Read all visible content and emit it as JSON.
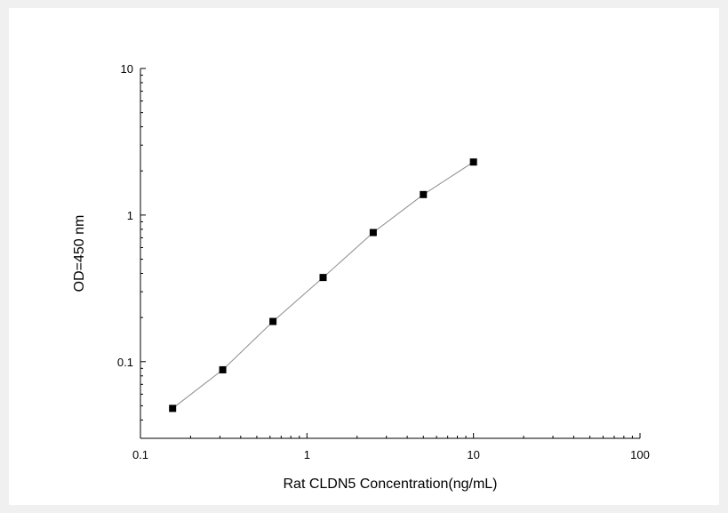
{
  "chart_data": {
    "type": "scatter",
    "title": "",
    "xlabel": "Rat CLDN5 Concentration(ng/mL)",
    "ylabel": "OD=450 nm",
    "x_scale": "log",
    "y_scale": "log",
    "xlim": [
      0.1,
      100
    ],
    "ylim": [
      0.03,
      10
    ],
    "x_ticks": [
      {
        "value": 0.1,
        "label": "0.1"
      },
      {
        "value": 1,
        "label": "1"
      },
      {
        "value": 10,
        "label": "10"
      },
      {
        "value": 100,
        "label": "100"
      }
    ],
    "y_ticks": [
      {
        "value": 0.1,
        "label": "0.1"
      },
      {
        "value": 1,
        "label": "1"
      },
      {
        "value": 10,
        "label": "10"
      }
    ],
    "grid": false,
    "legend": "none",
    "series": [
      {
        "x": [
          0.156,
          0.312,
          0.625,
          1.25,
          2.5,
          5,
          10
        ],
        "y": [
          0.048,
          0.088,
          0.188,
          0.375,
          0.76,
          1.38,
          2.3
        ],
        "marker": "square",
        "marker_color": "#000000",
        "line_color": "#8c8c8c"
      }
    ]
  }
}
